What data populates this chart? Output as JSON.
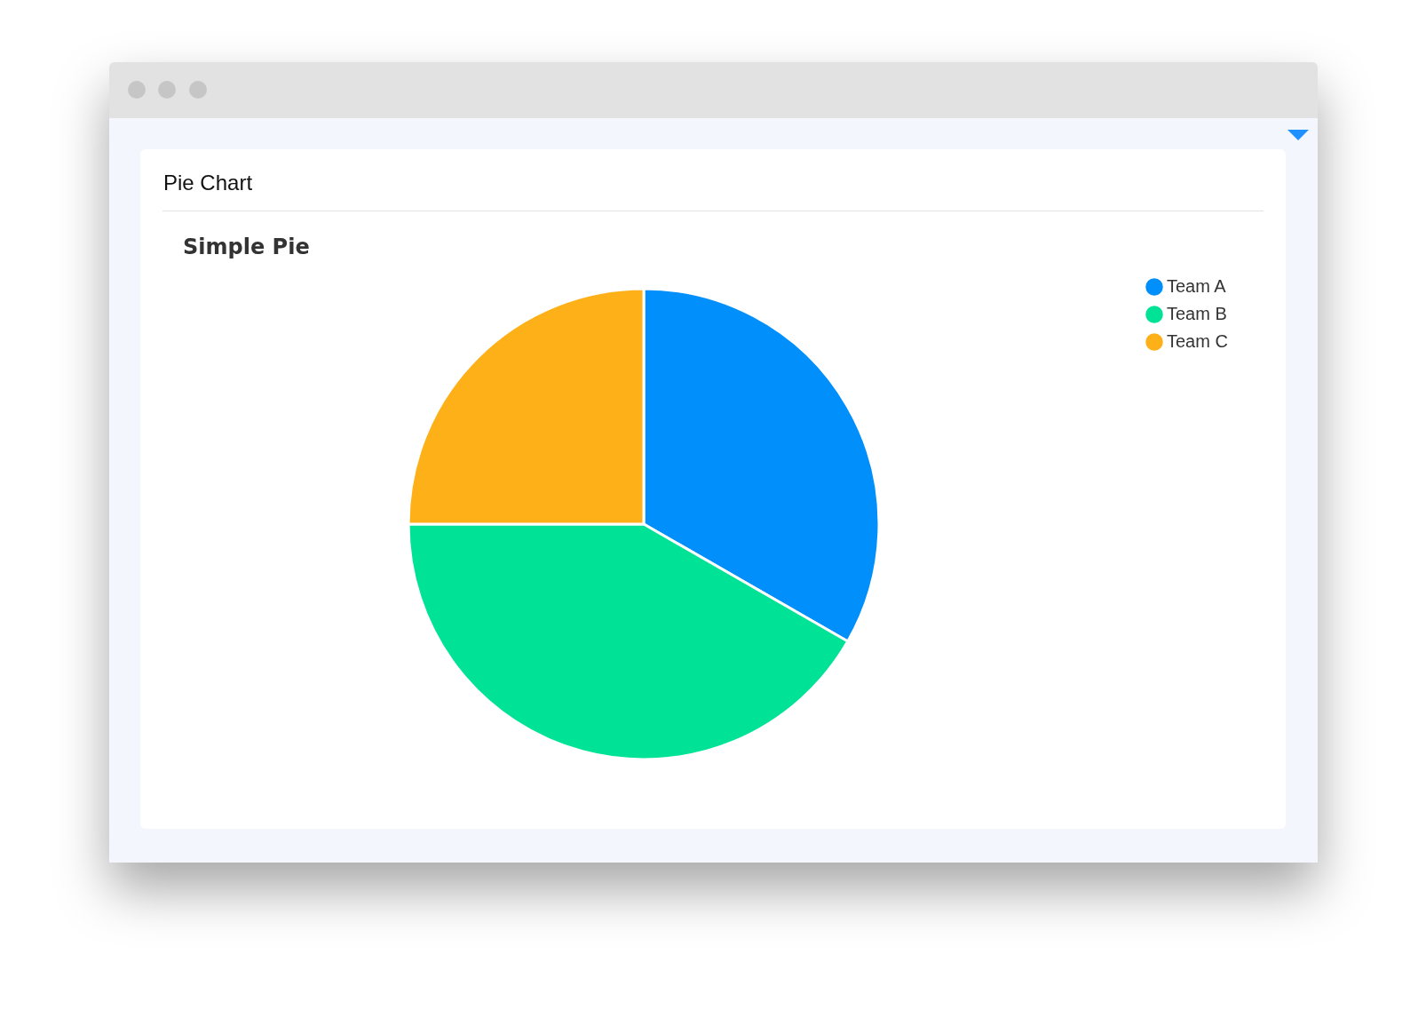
{
  "chart_data": {
    "type": "pie",
    "title": "Pie Chart",
    "subtitle": "Simple Pie",
    "categories": [
      "Team A",
      "Team B",
      "Team C"
    ],
    "values": [
      33.3,
      41.7,
      25
    ],
    "colors": [
      "#008ffb",
      "#00e396",
      "#feb019"
    ],
    "legend": "top right"
  }
}
